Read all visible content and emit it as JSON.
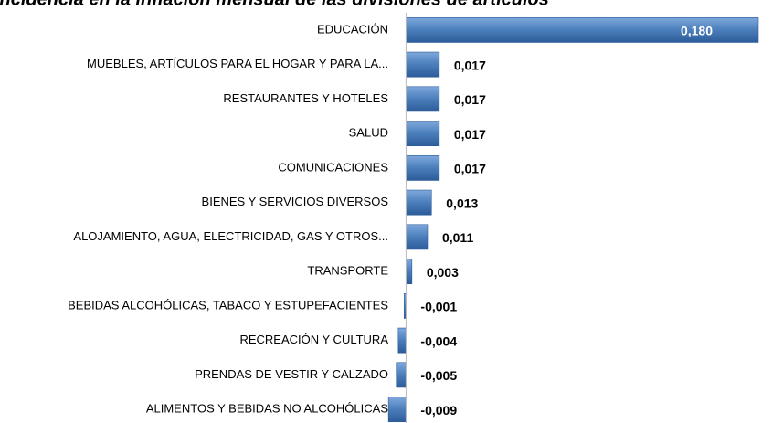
{
  "chart_data": {
    "type": "bar",
    "orientation": "horizontal",
    "title": "Incidencia en la inflación mensual de las divisiones de artículos",
    "categories": [
      "EDUCACIÓN",
      "MUEBLES, ARTÍCULOS PARA EL HOGAR Y PARA LA...",
      "RESTAURANTES Y HOTELES",
      "SALUD",
      "COMUNICACIONES",
      "BIENES Y SERVICIOS DIVERSOS",
      "ALOJAMIENTO, AGUA, ELECTRICIDAD,  GAS Y OTROS...",
      "TRANSPORTE",
      "BEBIDAS ALCOHÓLICAS, TABACO Y ESTUPEFACIENTES",
      "RECREACIÓN Y CULTURA",
      "PRENDAS DE VESTIR Y CALZADO",
      "ALIMENTOS Y BEBIDAS NO ALCOHÓLICAS"
    ],
    "values": [
      0.18,
      0.017,
      0.017,
      0.017,
      0.017,
      0.013,
      0.011,
      0.003,
      -0.001,
      -0.004,
      -0.005,
      -0.009
    ],
    "value_labels": [
      "0,180",
      "0,017",
      "0,017",
      "0,017",
      "0,017",
      "0,013",
      "0,011",
      "0,003",
      "-0,001",
      "-0,004",
      "-0,005",
      "-0,009"
    ],
    "color": "#4a7ebb",
    "xlim": [
      -0.01,
      0.18
    ]
  }
}
